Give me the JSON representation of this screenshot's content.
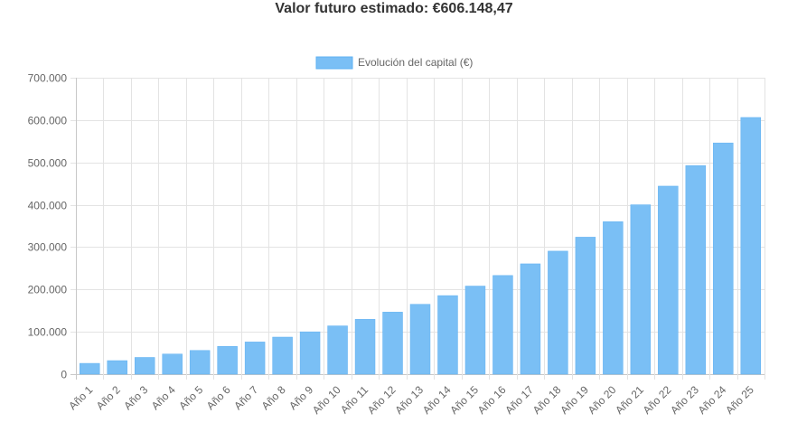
{
  "header": {
    "title": "Valor futuro estimado: €606.148,47"
  },
  "chart_data": {
    "type": "bar",
    "legend": {
      "label": "Evolución del capital (€)",
      "placement": "top-center"
    },
    "colors": {
      "bar_fill": "#7abff5",
      "bar_stroke": "#5eb0f2",
      "grid": "#e3e3e3",
      "axis": "#c8c8c8"
    },
    "grid": true,
    "ylim": [
      0,
      700000
    ],
    "yticks": [
      {
        "value": 0,
        "label": "0"
      },
      {
        "value": 100000,
        "label": "100.000"
      },
      {
        "value": 200000,
        "label": "200.000"
      },
      {
        "value": 300000,
        "label": "300.000"
      },
      {
        "value": 400000,
        "label": "400.000"
      },
      {
        "value": 500000,
        "label": "500.000"
      },
      {
        "value": 600000,
        "label": "600.000"
      },
      {
        "value": 700000,
        "label": "700.000"
      }
    ],
    "categories": [
      "Año 1",
      "Año 2",
      "Año 3",
      "Año 4",
      "Año 5",
      "Año 6",
      "Año 7",
      "Año 8",
      "Año 9",
      "Año 10",
      "Año 11",
      "Año 12",
      "Año 13",
      "Año 14",
      "Año 15",
      "Año 16",
      "Año 17",
      "Año 18",
      "Año 19",
      "Año 20",
      "Año 21",
      "Año 22",
      "Año 23",
      "Año 24",
      "Año 25"
    ],
    "values": [
      25500,
      32000,
      39500,
      47500,
      56000,
      65500,
      76000,
      87500,
      100000,
      114000,
      129500,
      146500,
      165000,
      185500,
      208000,
      233000,
      260500,
      290500,
      323500,
      360000,
      400000,
      444000,
      492500,
      546000,
      606148.47
    ]
  }
}
